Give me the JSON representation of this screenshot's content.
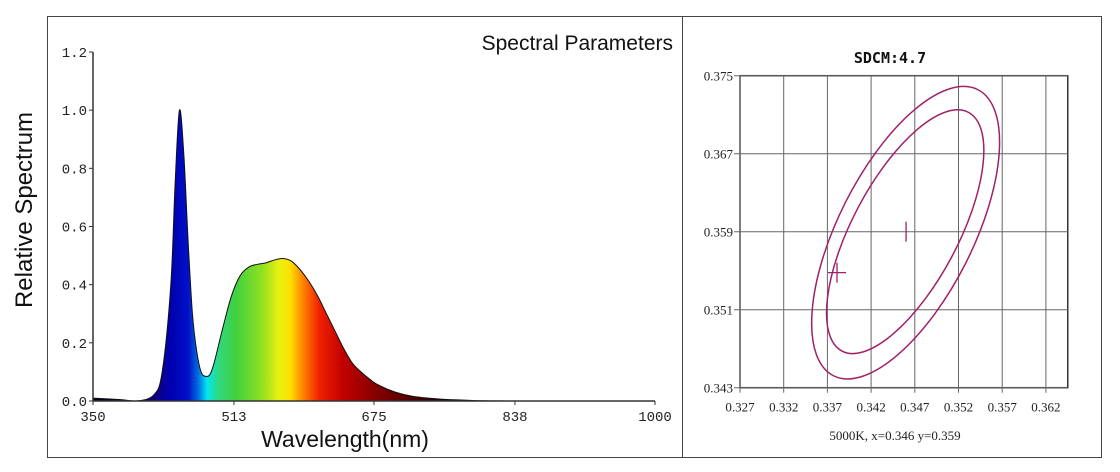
{
  "chart_data": [
    {
      "type": "area",
      "title": "Spectral Parameters",
      "xlabel": "Wavelength(nm)",
      "ylabel": "Relative Spectrum",
      "xlim": [
        350,
        1000
      ],
      "ylim": [
        0,
        1.2
      ],
      "x_ticks": [
        "350",
        "513",
        "675",
        "838",
        "1000"
      ],
      "y_ticks": [
        "0.0",
        "0.2",
        "0.4",
        "0.6",
        "0.8",
        "1.0",
        "1.2"
      ],
      "grid": false,
      "fill": "visible-spectrum color gradient",
      "x": [
        350,
        380,
        400,
        420,
        430,
        440,
        445,
        450,
        455,
        460,
        465,
        470,
        475,
        480,
        485,
        490,
        500,
        510,
        520,
        530,
        540,
        550,
        560,
        570,
        580,
        590,
        600,
        610,
        620,
        630,
        640,
        650,
        660,
        670,
        680,
        700,
        720,
        750,
        780,
        800,
        850,
        1000
      ],
      "y": [
        0.01,
        0.005,
        0.0,
        0.02,
        0.1,
        0.4,
        0.75,
        1.0,
        0.85,
        0.55,
        0.3,
        0.17,
        0.1,
        0.085,
        0.09,
        0.13,
        0.25,
        0.36,
        0.43,
        0.46,
        0.47,
        0.475,
        0.485,
        0.49,
        0.48,
        0.45,
        0.41,
        0.36,
        0.3,
        0.24,
        0.18,
        0.13,
        0.1,
        0.075,
        0.055,
        0.03,
        0.016,
        0.007,
        0.003,
        0.001,
        0.0,
        0.0
      ]
    },
    {
      "type": "scatter",
      "title": "SDCM:4.7",
      "xlabel": "5000K, x=0.346 y=0.359",
      "xlim": [
        0.327,
        0.3645
      ],
      "ylim": [
        0.343,
        0.375
      ],
      "x_ticks": [
        "0.327",
        "0.332",
        "0.337",
        "0.342",
        "0.347",
        "0.352",
        "0.357",
        "0.362"
      ],
      "y_ticks": [
        "0.343",
        "0.351",
        "0.359",
        "0.367",
        "0.375"
      ],
      "grid": true,
      "color": "#a0206a",
      "ellipses": [
        {
          "center": [
            0.3459,
            0.3589
          ],
          "x_range": [
            0.3352,
            0.3567
          ],
          "y_range": [
            0.3439,
            0.3739
          ],
          "top_x": 0.3526
        },
        {
          "center": [
            0.3459,
            0.359
          ],
          "x_range": [
            0.3369,
            0.3549
          ],
          "y_range": [
            0.3465,
            0.3715
          ],
          "top_x": 0.3519
        }
      ],
      "markers": [
        {
          "x": 0.346,
          "y": 0.359,
          "shape": "vertical-tick"
        },
        {
          "x": 0.3381,
          "y": 0.3548,
          "shape": "cross"
        }
      ]
    }
  ]
}
